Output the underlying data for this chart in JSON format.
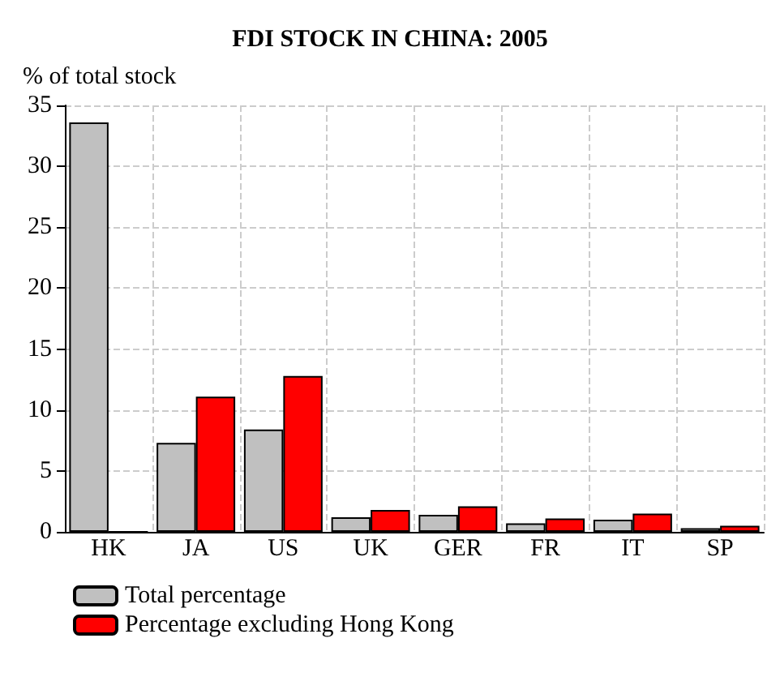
{
  "chart_data": {
    "type": "bar",
    "title": "FDI STOCK IN CHINA: 2005",
    "ylabel": "% of total stock",
    "categories": [
      "HK",
      "JA",
      "US",
      "UK",
      "GER",
      "FR",
      "IT",
      "SP"
    ],
    "series": [
      {
        "name": "Total percentage",
        "color": "#c0c0c0",
        "values": [
          33.6,
          7.3,
          8.4,
          1.2,
          1.4,
          0.7,
          1.0,
          0.3
        ]
      },
      {
        "name": "Percentage excluding Hong Kong",
        "color": "#ff0000",
        "values": [
          0,
          11.1,
          12.8,
          1.8,
          2.1,
          1.1,
          1.5,
          0.5
        ]
      }
    ],
    "ylim": [
      0,
      35
    ],
    "yticks": [
      0,
      5,
      10,
      15,
      20,
      25,
      30,
      35
    ],
    "grid": true,
    "legend": "bottom left"
  }
}
